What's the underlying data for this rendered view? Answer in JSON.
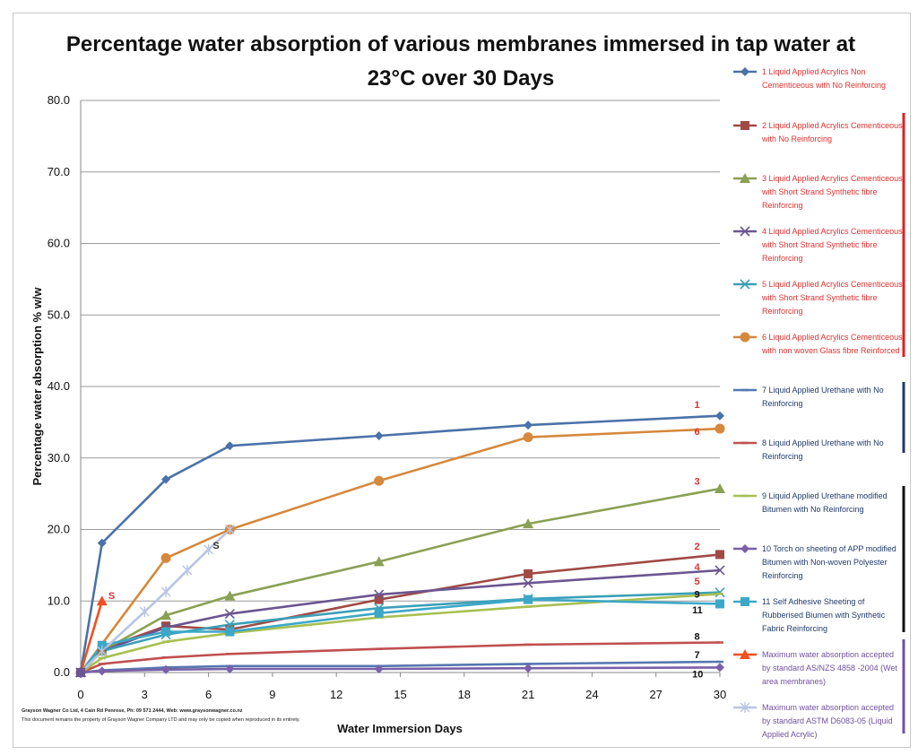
{
  "chart_data": {
    "type": "line",
    "title_lines": [
      "Percentage water absorption of various membranes immersed in tap water at",
      "23°C over 30 Days"
    ],
    "xlabel": "Water Immersion Days",
    "ylabel": "Percentage water absorption % w/w",
    "xlim": [
      0,
      30
    ],
    "ylim": [
      0,
      80
    ],
    "xticks": [
      0,
      3,
      6,
      9,
      12,
      15,
      18,
      21,
      24,
      27,
      30
    ],
    "yticks": [
      "0.0",
      "10.0",
      "20.0",
      "30.0",
      "40.0",
      "50.0",
      "60.0",
      "70.0",
      "80.0"
    ],
    "series": [
      {
        "id": "1",
        "name": "1 Liquid Applied Acrylics Non Cementiceous with No Reinforcing",
        "color": "#4a72a8",
        "legend_color": "#e03030",
        "marker": "diamond",
        "points": [
          [
            0,
            0
          ],
          [
            1,
            18.1
          ],
          [
            4,
            27
          ],
          [
            7,
            31.7
          ],
          [
            14,
            33.1
          ],
          [
            21,
            34.6
          ],
          [
            30,
            35.9
          ]
        ]
      },
      {
        "id": "2",
        "name": "2 Liquid Applied Acrylics Cementiceous with No Reinforcing",
        "color": "#a04a45",
        "legend_color": "#e03030",
        "marker": "square",
        "points": [
          [
            0,
            0
          ],
          [
            1,
            3.3
          ],
          [
            4,
            6.5
          ],
          [
            7,
            6
          ],
          [
            14,
            10.2
          ],
          [
            21,
            13.8
          ],
          [
            30,
            16.5
          ]
        ]
      },
      {
        "id": "3",
        "name": "3 Liquid Applied Acrylics Cementiceous with Short Strand Synthetic fibre Reinforcing",
        "color": "#8aa054",
        "legend_color": "#e03030",
        "marker": "triangle",
        "points": [
          [
            0,
            0
          ],
          [
            1,
            3
          ],
          [
            4,
            8
          ],
          [
            7,
            10.7
          ],
          [
            14,
            15.5
          ],
          [
            21,
            20.8
          ],
          [
            30,
            25.7
          ]
        ]
      },
      {
        "id": "4",
        "name": "4 Liquid Applied Acrylics Cementiceous with Short Strand Synthetic fibre Reinforcing",
        "color": "#6a5690",
        "legend_color": "#e03030",
        "marker": "x",
        "points": [
          [
            0,
            0
          ],
          [
            1,
            3
          ],
          [
            4,
            6.3
          ],
          [
            7,
            8.2
          ],
          [
            14,
            10.9
          ],
          [
            21,
            12.5
          ],
          [
            30,
            14.3
          ]
        ]
      },
      {
        "id": "5",
        "name": "5 Liquid Applied Acrylics Cementiceous with Short Strand Synthetic fibre Reinforcing",
        "color": "#3ca0b8",
        "legend_color": "#e03030",
        "marker": "x",
        "points": [
          [
            0,
            0
          ],
          [
            1,
            3
          ],
          [
            4,
            5.3
          ],
          [
            7,
            6.7
          ],
          [
            14,
            9
          ],
          [
            21,
            10.3
          ],
          [
            30,
            11.2
          ]
        ]
      },
      {
        "id": "6",
        "name": "6 Liquid Applied Acrylics Cementiceous with non woven Glass fibre Reinforced",
        "color": "#d6883c",
        "legend_color": "#e03030",
        "marker": "circle",
        "points": [
          [
            0,
            0
          ],
          [
            4,
            16
          ],
          [
            7,
            20
          ],
          [
            14,
            26.8
          ],
          [
            21,
            32.9
          ],
          [
            30,
            34.1
          ]
        ]
      },
      {
        "id": "7",
        "name": "7 Liquid Applied Urethane with No Reinforcing",
        "color": "#5577b0",
        "legend_color": "#1f3a6a",
        "marker": "dash",
        "points": [
          [
            0,
            0
          ],
          [
            1,
            0.3
          ],
          [
            4,
            0.7
          ],
          [
            7,
            0.9
          ],
          [
            14,
            0.9
          ],
          [
            21,
            1.2
          ],
          [
            30,
            1.5
          ]
        ]
      },
      {
        "id": "8",
        "name": "8 Liquid Applied Urethane with No Reinforcing",
        "color": "#c05050",
        "legend_color": "#1f3a6a",
        "marker": "dash",
        "points": [
          [
            0,
            0
          ],
          [
            1,
            1.2
          ],
          [
            4,
            2.1
          ],
          [
            7,
            2.6
          ],
          [
            14,
            3.3
          ],
          [
            21,
            3.9
          ],
          [
            30,
            4.2
          ]
        ]
      },
      {
        "id": "9",
        "name": "9 Liquid Applied Urethane modified Bitumen with No Reinforcing",
        "color": "#a8c050",
        "legend_color": "#1f3a6a",
        "marker": "dash",
        "points": [
          [
            0,
            0
          ],
          [
            1,
            2
          ],
          [
            4,
            4.3
          ],
          [
            7,
            5.5
          ],
          [
            14,
            7.7
          ],
          [
            21,
            9.2
          ],
          [
            30,
            11
          ]
        ]
      },
      {
        "id": "10",
        "name": "10 Torch on sheeting of APP modified Bitumen with Non-woven Polyester Reinforcing",
        "color": "#7a60a8",
        "legend_color": "#1f3a6a",
        "marker": "diamond",
        "points": [
          [
            0,
            0
          ],
          [
            1,
            0.2
          ],
          [
            4,
            0.4
          ],
          [
            7,
            0.5
          ],
          [
            14,
            0.5
          ],
          [
            21,
            0.6
          ],
          [
            30,
            0.7
          ]
        ]
      },
      {
        "id": "11",
        "name": "11 Self Adhesive Sheeting of Rubberised Biumen with Synthetic Fabric Reinforcing",
        "color": "#3ca8c8",
        "legend_color": "#1f3a6a",
        "marker": "square",
        "points": [
          [
            0,
            0
          ],
          [
            1,
            3.8
          ],
          [
            4,
            5.7
          ],
          [
            7,
            5.7
          ],
          [
            14,
            8.3
          ],
          [
            21,
            10.2
          ],
          [
            30,
            9.6
          ]
        ]
      },
      {
        "id": "S1",
        "name": "Maximum water absorption accepted by standard AS/NZS 4858 -2004 (Wet area membranes)",
        "color": "#f05020",
        "legend_color": "#7050a0",
        "marker": "triangle",
        "points": [
          [
            0,
            0
          ],
          [
            1,
            10
          ]
        ]
      },
      {
        "id": "S2",
        "name": "Maximum water absorption accepted by standard ASTM D6083-05 (Liquid Applied Acrylic)",
        "color": "#b8c4e4",
        "legend_color": "#7050a0",
        "marker": "star",
        "points": [
          [
            0,
            0
          ],
          [
            1,
            3
          ],
          [
            3,
            8.5
          ],
          [
            4,
            11.3
          ],
          [
            5,
            14.3
          ],
          [
            6,
            17.2
          ],
          [
            7,
            20
          ]
        ]
      }
    ],
    "end_labels": [
      {
        "text": "1",
        "x": 28.8,
        "y": 37,
        "color": "#e03030"
      },
      {
        "text": "6",
        "x": 28.8,
        "y": 33.2,
        "color": "#e03030"
      },
      {
        "text": "3",
        "x": 28.8,
        "y": 26.3,
        "color": "#e03030"
      },
      {
        "text": "2",
        "x": 28.8,
        "y": 17.2,
        "color": "#e03030"
      },
      {
        "text": "4",
        "x": 28.8,
        "y": 14.3,
        "color": "#e03030"
      },
      {
        "text": "5",
        "x": 28.8,
        "y": 12.3,
        "color": "#e03030"
      },
      {
        "text": "9",
        "x": 28.8,
        "y": 10.5,
        "color": "#111111"
      },
      {
        "text": "11",
        "x": 28.7,
        "y": 8.3,
        "color": "#111111"
      },
      {
        "text": "8",
        "x": 28.8,
        "y": 4.6,
        "color": "#111111"
      },
      {
        "text": "7",
        "x": 28.8,
        "y": 2,
        "color": "#111111"
      },
      {
        "text": "10",
        "x": 28.7,
        "y": -0.7,
        "color": "#111111"
      },
      {
        "text": "S",
        "x": 1.3,
        "y": 10.3,
        "color": "#e03030"
      },
      {
        "text": "S",
        "x": 6.2,
        "y": 17.3,
        "color": "#333333"
      }
    ]
  },
  "footer": {
    "line1": "Grayson Wagner Co Ltd, 4 Cain Rd Penrose, Ph: 09 571 2444, Web: www.graysonwagner.co.nz",
    "line2": "This document remains the property of Grayson Wagner Company LTD and may only be copied when reproduced in its entirety."
  },
  "colors": {
    "group1_bar": "#e02020",
    "group2_bar": "#1f3a6a",
    "group3_bar": "#111111",
    "group4_bar": "#7050a0"
  }
}
